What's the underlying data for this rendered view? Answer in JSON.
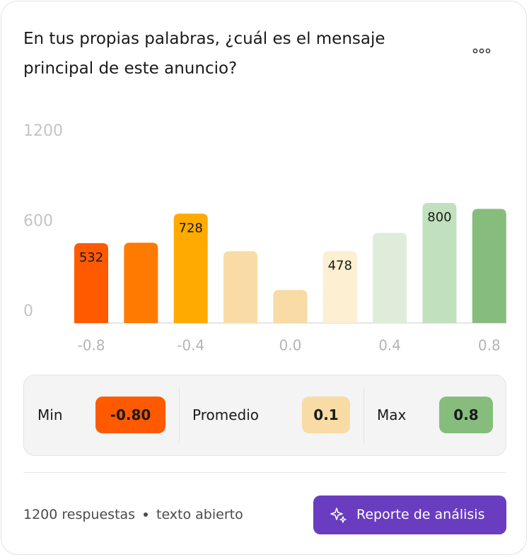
{
  "header": {
    "title": "En tus propias palabras, ¿cuál es el mensaje principal de este anuncio?"
  },
  "chart_data": {
    "type": "bar",
    "categories": [
      "-0.8",
      null,
      "-0.4",
      null,
      "0.0",
      null,
      "0.4",
      null,
      "0.8"
    ],
    "values": [
      532,
      535,
      728,
      478,
      220,
      478,
      600,
      800,
      760
    ],
    "value_labels": [
      "532",
      null,
      "728",
      null,
      null,
      "478",
      null,
      "800",
      null
    ],
    "colors": [
      "#ff5a00",
      "#ff7a00",
      "#ffaa00",
      "#f9dca5",
      "#f8dba5",
      "#fcefd2",
      "#deecd9",
      "#c1e0be",
      "#86bd7d"
    ],
    "ylim": [
      0,
      1200
    ],
    "yticks": [
      0,
      600,
      1200
    ],
    "grid": false
  },
  "stats": [
    {
      "label": "Min",
      "value": "-0.80",
      "color": "#ff5a00"
    },
    {
      "label": "Promedio",
      "value": "0.1",
      "color": "#f9dca5"
    },
    {
      "label": "Max",
      "value": "0.8",
      "color": "#86bd7d"
    }
  ],
  "footer": {
    "responses": "1200 respuestas",
    "kind": "texto abierto",
    "button": "Reporte de análisis"
  }
}
